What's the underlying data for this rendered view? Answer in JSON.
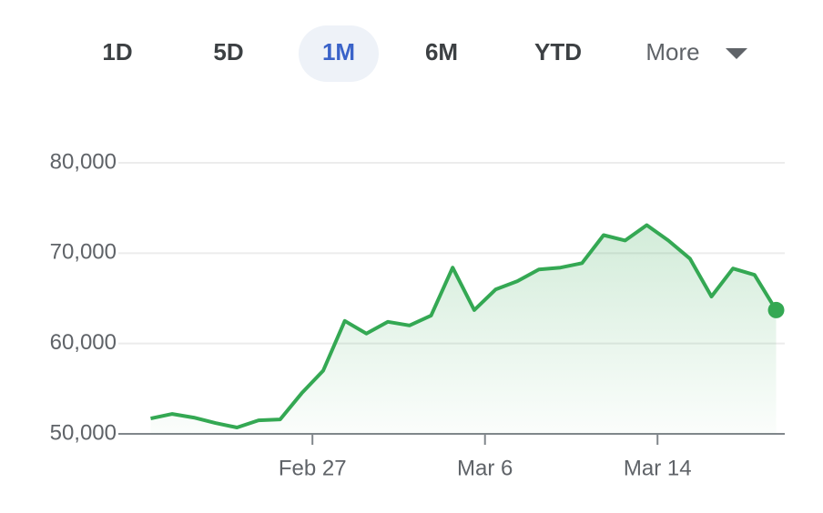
{
  "tabs": [
    "1D",
    "5D",
    "1M",
    "6M",
    "YTD",
    "More"
  ],
  "selected_tab": 2,
  "chart_data": {
    "type": "line",
    "color": "#34a853",
    "x": [
      0,
      1,
      2,
      3,
      4,
      5,
      6,
      7,
      8,
      9,
      10,
      11,
      12,
      13,
      14,
      15,
      16,
      17,
      18,
      19,
      20,
      21,
      22,
      23,
      24,
      25,
      26,
      27,
      28,
      29
    ],
    "values": [
      51700,
      52200,
      51800,
      51200,
      50700,
      51500,
      51600,
      54500,
      57000,
      62500,
      61100,
      62400,
      62000,
      63100,
      68400,
      63700,
      66000,
      66900,
      68200,
      68400,
      68900,
      72000,
      71400,
      73100,
      71400,
      69400,
      65200,
      68300,
      67600,
      63700
    ],
    "xlim": [
      -1.5,
      29.4
    ],
    "xticks": [
      {
        "value": 7.5,
        "label": "Feb 27"
      },
      {
        "value": 15.5,
        "label": "Mar 6"
      },
      {
        "value": 23.5,
        "label": "Mar 14"
      }
    ],
    "ylim": [
      50000,
      80000
    ],
    "yticks": [
      {
        "value": 50000,
        "label": "50,000"
      },
      {
        "value": 60000,
        "label": "60,000"
      },
      {
        "value": 70000,
        "label": "70,000"
      },
      {
        "value": 80000,
        "label": "80,000"
      }
    ],
    "grid": true
  }
}
